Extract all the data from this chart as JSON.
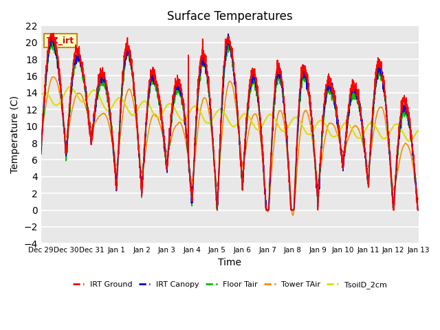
{
  "title": "Surface Temperatures",
  "xlabel": "Time",
  "ylabel": "Temperature (C)",
  "ylim": [
    -4,
    22
  ],
  "yticks": [
    -4,
    -2,
    0,
    2,
    4,
    6,
    8,
    10,
    12,
    14,
    16,
    18,
    20,
    22
  ],
  "plot_bg": "#e8e8e8",
  "grid_color": "white",
  "lines": [
    "IRT Ground",
    "IRT Canopy",
    "Floor Tair",
    "Tower TAir",
    "TsoilD_2cm"
  ],
  "line_colors": [
    "#ff0000",
    "#0000cc",
    "#00bb00",
    "#ff8800",
    "#dddd00"
  ],
  "line_widths": [
    1.2,
    1.2,
    1.2,
    1.2,
    1.5
  ],
  "annotation_text": "TZ_irt",
  "annotation_bg": "#ffffcc",
  "annotation_border": "#cc8800",
  "annotation_text_color": "#cc0000",
  "n_days": 15,
  "tick_labels": [
    "Dec 29",
    "Dec 30",
    "Dec 31",
    "Jan 1",
    "Jan 2",
    "Jan 3",
    "Jan 4",
    "Jan 5",
    "Jan 6",
    "Jan 7",
    "Jan 8",
    "Jan 9",
    "Jan 10",
    "Jan 11",
    "Jan 12",
    "Jan 13"
  ]
}
